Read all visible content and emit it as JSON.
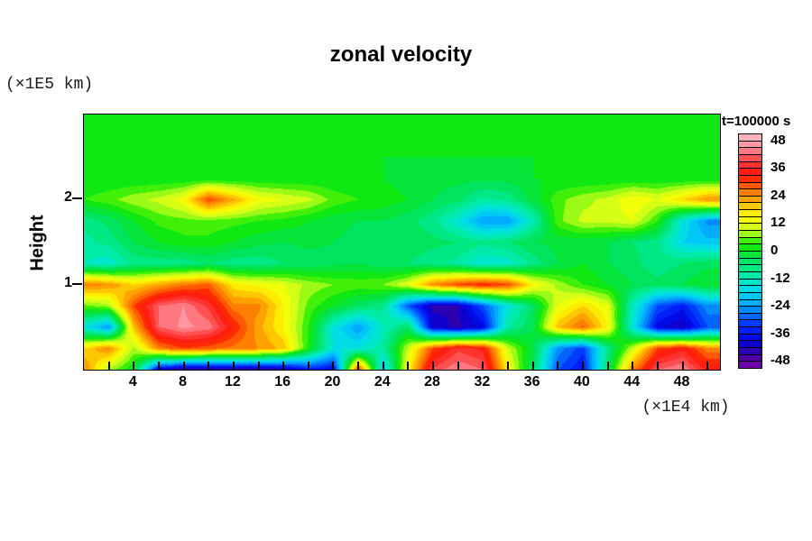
{
  "figure": {
    "title": "zonal velocity",
    "y_axis": {
      "label": "Height",
      "unit": "(×1E5 km)",
      "tick_labels": [
        "2",
        "1"
      ],
      "tick_values": [
        2,
        1
      ],
      "range": [
        0,
        3
      ]
    },
    "x_axis": {
      "unit": "(×1E4 km)",
      "tick_labels": [
        "4",
        "8",
        "12",
        "16",
        "20",
        "24",
        "28",
        "32",
        "36",
        "40",
        "44",
        "48"
      ],
      "tick_values": [
        4,
        8,
        12,
        16,
        20,
        24,
        28,
        32,
        36,
        40,
        44,
        48
      ],
      "minor_tick_step": 2,
      "range": [
        0,
        51
      ]
    },
    "colorbar": {
      "title": "t=100000 s",
      "tick_labels": [
        "48",
        "36",
        "24",
        "12",
        "0",
        "-12",
        "-24",
        "-36",
        "-48"
      ],
      "tick_values": [
        48,
        36,
        24,
        12,
        0,
        -12,
        -24,
        -36,
        -48
      ],
      "vmin": -51,
      "vmax": 51,
      "level_step": 3,
      "color_stops": [
        [
          51,
          "#ffbec8"
        ],
        [
          45,
          "#ff8c96"
        ],
        [
          39,
          "#ff3c3c"
        ],
        [
          33,
          "#ff1400"
        ],
        [
          27,
          "#ff6e00"
        ],
        [
          21,
          "#ffb400"
        ],
        [
          15,
          "#ffff00"
        ],
        [
          9,
          "#c8ff1e"
        ],
        [
          3,
          "#14eb00"
        ],
        [
          -3,
          "#00e14b"
        ],
        [
          -9,
          "#00eb96"
        ],
        [
          -15,
          "#00e6dc"
        ],
        [
          -21,
          "#00beff"
        ],
        [
          -27,
          "#0078ff"
        ],
        [
          -33,
          "#0028ff"
        ],
        [
          -39,
          "#0000dc"
        ],
        [
          -45,
          "#3c00a0"
        ],
        [
          -51,
          "#7d00aa"
        ]
      ]
    }
  },
  "chart_data": {
    "type": "heatmap",
    "title": "zonal velocity",
    "xlabel": "(×1E4 km)",
    "ylabel": "Height (×1E5 km)",
    "colorbar_label": "t=100000 s",
    "x_range": [
      0,
      51
    ],
    "y_range": [
      0,
      3
    ],
    "x": [
      0,
      2,
      4,
      6,
      8,
      10,
      12,
      14,
      16,
      18,
      20,
      22,
      24,
      26,
      28,
      30,
      32,
      34,
      36,
      38,
      40,
      42,
      44,
      46,
      48,
      50
    ],
    "y": [
      3,
      2.75,
      2.5,
      2.25,
      2,
      1.75,
      1.5,
      1.25,
      1,
      0.75,
      0.5,
      0.25,
      0
    ],
    "values": [
      [
        0,
        0,
        0,
        0,
        0,
        0,
        0,
        0,
        0,
        0,
        0,
        0,
        0,
        0,
        0,
        0,
        0,
        0,
        0,
        0,
        0,
        0,
        0,
        0,
        0,
        0
      ],
      [
        0,
        0,
        0,
        0,
        0,
        0,
        0,
        0,
        0,
        0,
        0,
        0,
        0,
        0,
        0,
        0,
        0,
        0,
        0,
        0,
        0,
        0,
        0,
        0,
        0,
        0
      ],
      [
        0,
        0,
        0,
        0,
        0,
        0,
        0,
        0,
        0,
        0,
        0,
        0,
        0,
        0,
        0,
        0,
        0,
        0,
        0,
        0,
        0,
        0,
        0,
        0,
        0,
        0
      ],
      [
        0,
        0,
        0,
        0,
        0,
        0,
        0,
        0,
        0,
        0,
        0,
        0,
        0,
        -2,
        -2,
        -2,
        -2,
        -2,
        0,
        0,
        0,
        0,
        0,
        0,
        0,
        0
      ],
      [
        3,
        5,
        8,
        10,
        14,
        30,
        22,
        14,
        12,
        10,
        5,
        3,
        2,
        0,
        -3,
        -5,
        -10,
        -8,
        -2,
        5,
        8,
        10,
        15,
        12,
        18,
        24
      ],
      [
        -8,
        -5,
        0,
        4,
        5,
        5,
        4,
        3,
        2,
        0,
        -2,
        -3,
        -3,
        -5,
        -8,
        -15,
        -24,
        -24,
        -12,
        5,
        10,
        10,
        12,
        3,
        -15,
        -25
      ],
      [
        -10,
        -8,
        -3,
        0,
        2,
        2,
        0,
        -2,
        -3,
        -2,
        -3,
        -4,
        -3,
        -4,
        -5,
        -6,
        -8,
        -6,
        -3,
        -2,
        -2,
        -3,
        -6,
        -8,
        -18,
        -20
      ],
      [
        -12,
        -14,
        -8,
        -8,
        -8,
        -6,
        -8,
        -8,
        -6,
        -5,
        -4,
        -3,
        -5,
        -6,
        -8,
        -10,
        -15,
        -14,
        -8,
        -3,
        0,
        -3,
        -5,
        -8,
        -6,
        -4
      ],
      [
        26,
        24,
        18,
        22,
        26,
        28,
        16,
        14,
        12,
        8,
        6,
        5,
        6,
        12,
        25,
        30,
        33,
        30,
        15,
        8,
        3,
        0,
        -3,
        -5,
        -3,
        0
      ],
      [
        5,
        8,
        30,
        42,
        45,
        38,
        25,
        25,
        15,
        5,
        0,
        -5,
        -8,
        -30,
        -43,
        -42,
        -30,
        -15,
        -5,
        12,
        18,
        12,
        -12,
        -30,
        -35,
        -25
      ],
      [
        -15,
        -25,
        20,
        42,
        46,
        44,
        33,
        22,
        15,
        3,
        -15,
        -24,
        -12,
        -5,
        -40,
        -43,
        -38,
        -10,
        -3,
        20,
        28,
        15,
        -15,
        -38,
        -42,
        -30
      ],
      [
        18,
        25,
        8,
        25,
        30,
        28,
        26,
        24,
        20,
        2,
        -15,
        -15,
        -10,
        10,
        30,
        38,
        35,
        10,
        -2,
        -25,
        -32,
        -8,
        10,
        30,
        35,
        25
      ],
      [
        25,
        8,
        0,
        -40,
        -46,
        -46,
        -46,
        -45,
        -44,
        -35,
        -38,
        32,
        -20,
        15,
        40,
        45,
        42,
        15,
        -5,
        -30,
        -36,
        -5,
        25,
        42,
        45,
        35
      ]
    ]
  }
}
